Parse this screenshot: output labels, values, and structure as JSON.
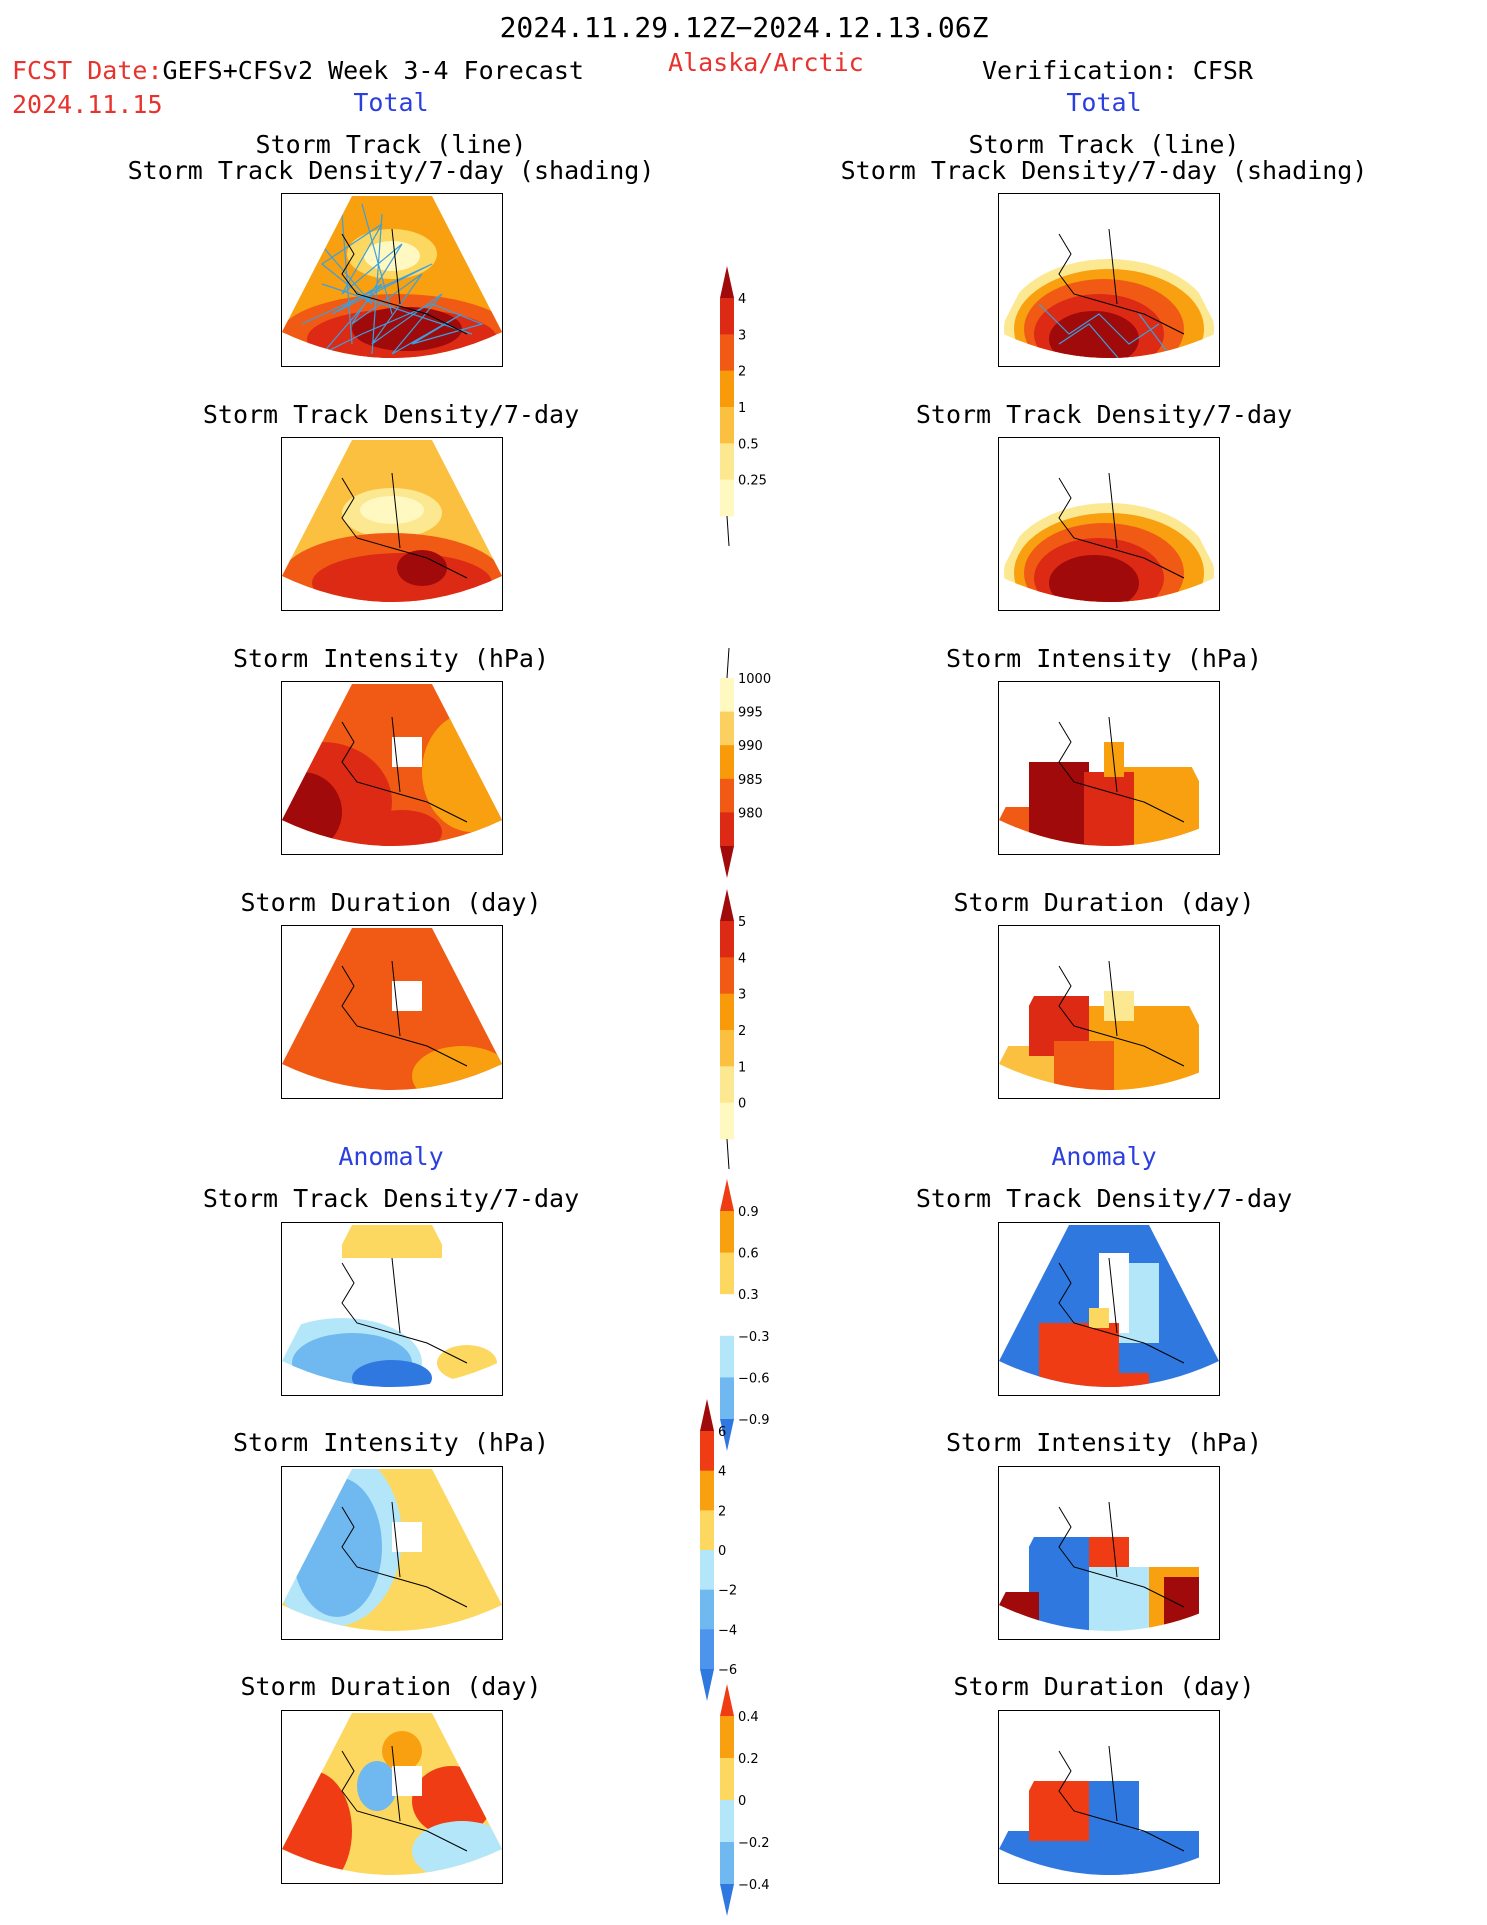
{
  "header": {
    "period": "2024.11.29.12Z−2024.12.13.06Z",
    "fcst_label": "FCST Date:",
    "fcst_model": "GEFS+CFSv2 Week 3-4 Forecast",
    "fcst_date": "2024.11.15",
    "region": "Alaska/Arctic",
    "verification": "Verification: CFSR"
  },
  "columns": {
    "left_total": "Total",
    "right_total": "Total",
    "left_anomaly": "Anomaly",
    "right_anomaly": "Anomaly"
  },
  "titles": {
    "track_line": "Storm Track (line)",
    "track_shading": "Storm Track Density/7-day (shading)",
    "density": "Storm Track Density/7-day",
    "intensity": "Storm Intensity (hPa)",
    "duration": "Storm Duration (day)"
  },
  "colorbars": [
    {
      "id": "density_total",
      "labels": [
        "4",
        "3",
        "2",
        "1",
        "0.5",
        "0.25"
      ],
      "colors": [
        "#a00a0a",
        "#dc2a14",
        "#f05a14",
        "#f89a0a",
        "#fcc040",
        "#fce890",
        "#fff8c0"
      ]
    },
    {
      "id": "intensity_total",
      "labels": [
        "1000",
        "995",
        "990",
        "985",
        "980"
      ],
      "colors": [
        "#fff8c0",
        "#fcd060",
        "#f89a0a",
        "#f05a14",
        "#dc2a14",
        "#a00a0a"
      ]
    },
    {
      "id": "duration_total",
      "labels": [
        "5",
        "4",
        "3",
        "2",
        "1",
        "0"
      ],
      "colors": [
        "#a00a0a",
        "#dc2a14",
        "#f05a14",
        "#f89a0a",
        "#fcc040",
        "#fce890",
        "#fff8c0"
      ]
    },
    {
      "id": "density_anom",
      "labels": [
        "0.9",
        "0.6",
        "0.3",
        "−0.3",
        "−0.6",
        "−0.9"
      ],
      "colors": [
        "#f03c14",
        "#f8a010",
        "#fcd860",
        "#ffffff",
        "#b4e6fa",
        "#70b8f0",
        "#2f78e0"
      ]
    },
    {
      "id": "intensity_anom",
      "labels": [
        "6",
        "4",
        "2",
        "0",
        "−2",
        "−4",
        "−6"
      ],
      "colors": [
        "#a00a0a",
        "#f03c14",
        "#f8a010",
        "#fcd860",
        "#b4e6fa",
        "#70b8f0",
        "#4c94ec",
        "#2f78e0"
      ]
    },
    {
      "id": "duration_anom",
      "labels": [
        "0.4",
        "0.2",
        "0",
        "−0.2",
        "−0.4"
      ],
      "colors": [
        "#f03c14",
        "#f8a010",
        "#fcd860",
        "#b4e6fa",
        "#70b8f0",
        "#2f78e0"
      ]
    }
  ]
}
